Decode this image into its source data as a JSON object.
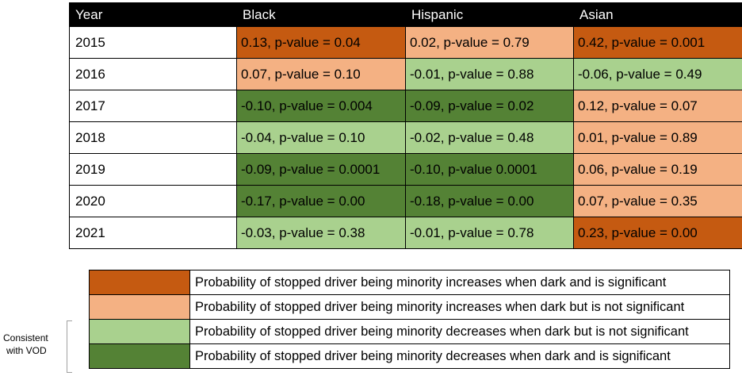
{
  "table": {
    "headers": [
      "Year",
      "Black",
      "Hispanic",
      "Asian"
    ],
    "rows": [
      {
        "year": "2015",
        "cells": [
          {
            "text": "0.13, p-value = 0.04",
            "color": "#c55a11"
          },
          {
            "text": "0.02, p-value = 0.79",
            "color": "#f4b183"
          },
          {
            "text": "0.42, p-value = 0.001",
            "color": "#c55a11"
          }
        ]
      },
      {
        "year": "2016",
        "cells": [
          {
            "text": "0.07, p-value = 0.10",
            "color": "#f4b183"
          },
          {
            "text": "-0.01, p-value = 0.88",
            "color": "#a9d18e"
          },
          {
            "text": "-0.06, p-value = 0.49",
            "color": "#a9d18e"
          }
        ]
      },
      {
        "year": "2017",
        "cells": [
          {
            "text": "-0.10, p-value = 0.004",
            "color": "#548235"
          },
          {
            "text": "-0.09, p-value = 0.02",
            "color": "#548235"
          },
          {
            "text": "0.12, p-value = 0.07",
            "color": "#f4b183"
          }
        ]
      },
      {
        "year": "2018",
        "cells": [
          {
            "text": "-0.04, p-value = 0.10",
            "color": "#a9d18e"
          },
          {
            "text": "-0.02, p-value = 0.48",
            "color": "#a9d18e"
          },
          {
            "text": "0.01, p-value = 0.89",
            "color": "#f4b183"
          }
        ]
      },
      {
        "year": "2019",
        "cells": [
          {
            "text": "-0.09, p-value = 0.0001",
            "color": "#548235"
          },
          {
            "text": "-0.10, p-value 0.0001",
            "color": "#548235"
          },
          {
            "text": "0.06, p-value = 0.19",
            "color": "#f4b183"
          }
        ]
      },
      {
        "year": "2020",
        "cells": [
          {
            "text": "-0.17, p-value = 0.00",
            "color": "#548235"
          },
          {
            "text": "-0.18, p-value = 0.00",
            "color": "#548235"
          },
          {
            "text": "0.07, p-value = 0.35",
            "color": "#f4b183"
          }
        ]
      },
      {
        "year": "2021",
        "cells": [
          {
            "text": "-0.03, p-value = 0.38",
            "color": "#a9d18e"
          },
          {
            "text": "-0.01, p-value = 0.78",
            "color": "#a9d18e"
          },
          {
            "text": "0.23, p-value = 0.00",
            "color": "#c55a11"
          }
        ]
      }
    ]
  },
  "legend": [
    {
      "color": "#c55a11",
      "text": "Probability of stopped driver being minority increases when dark and is significant"
    },
    {
      "color": "#f4b183",
      "text": "Probability of stopped driver being minority increases when dark but is not significant"
    },
    {
      "color": "#a9d18e",
      "text": "Probability of stopped driver being minority decreases when dark but is not significant"
    },
    {
      "color": "#548235",
      "text": "Probability of stopped driver being minority decreases when dark and is significant"
    }
  ],
  "bracket_note": {
    "line1": "Consistent",
    "line2": "with VOD"
  }
}
